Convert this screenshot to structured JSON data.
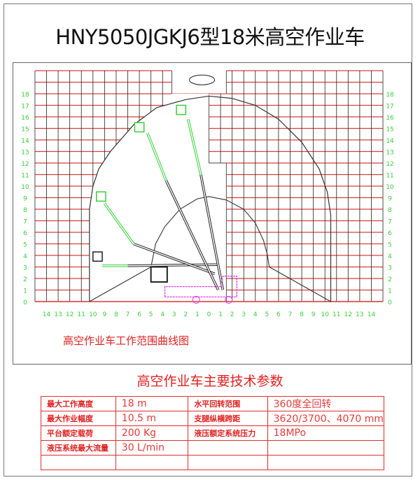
{
  "title": "HNY5050JGKJ6型18米高空作业车",
  "diagram": {
    "caption": "高空作业车工作范围曲线图",
    "y_axis_labels": [
      "0",
      "1",
      "2",
      "3",
      "4",
      "5",
      "6",
      "7",
      "8",
      "9",
      "10",
      "11",
      "12",
      "13",
      "14",
      "15",
      "16",
      "17",
      "18"
    ],
    "x_axis_labels": [
      "14",
      "13",
      "12",
      "11",
      "10",
      "9",
      "8",
      "7",
      "6",
      "5",
      "4",
      "3",
      "2",
      "1",
      "0",
      "1",
      "2",
      "3",
      "4",
      "5",
      "6",
      "7",
      "8",
      "9",
      "10",
      "11",
      "12",
      "13",
      "14"
    ],
    "max_height_m": 18,
    "max_reach_m": 10.5,
    "colors": {
      "grid": "#d84040",
      "labels": "#3ad03a",
      "boom_upper": "#3ad03a",
      "envelope": "#333333",
      "truck": "#e040e0"
    }
  },
  "spec_table": {
    "title": "高空作业车主要技术参数",
    "rows": [
      [
        "最大工作高度",
        "18 m",
        "水平回转范围",
        "360度全回转"
      ],
      [
        "最大作业幅度",
        "10.5 m",
        "支腿纵横跨距",
        "3620/3700、4070 mm"
      ],
      [
        "平台额定载荷",
        "200 Kg",
        "液压额定系统压力",
        "18MPo"
      ],
      [
        "液压系统最大流量",
        "30 L/min",
        "",
        ""
      ],
      [
        "",
        "",
        "",
        ""
      ]
    ]
  }
}
